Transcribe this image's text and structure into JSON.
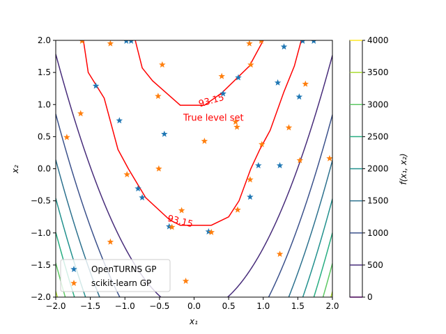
{
  "chart_data": {
    "type": "contour",
    "xlabel": "x₁",
    "ylabel": "x₂",
    "colorbar_label": "f(x₁, x₂)",
    "xlim": [
      -2,
      2
    ],
    "ylim": [
      -2,
      2
    ],
    "x_ticks": [
      -2.0,
      -1.5,
      -1.0,
      -0.5,
      0.0,
      0.5,
      1.0,
      1.5,
      2.0
    ],
    "x_tick_labels": [
      "−2.0",
      "−1.5",
      "−1.0",
      "−0.5",
      "0.0",
      "0.5",
      "1.0",
      "1.5",
      "2.0"
    ],
    "y_ticks": [
      -2.0,
      -1.5,
      -1.0,
      -0.5,
      0.0,
      0.5,
      1.0,
      1.5,
      2.0
    ],
    "y_tick_labels": [
      "−2.0",
      "−1.5",
      "−1.0",
      "−0.5",
      "0.0",
      "0.5",
      "1.0",
      "1.5",
      "2.0"
    ],
    "colorbar": {
      "range": [
        0,
        4000
      ],
      "ticks": [
        0,
        500,
        1000,
        1500,
        2000,
        2500,
        3000,
        3500,
        4000
      ],
      "tick_labels": [
        "0",
        "500",
        "1000",
        "1500",
        "2000",
        "2500",
        "3000",
        "3500",
        "4000"
      ],
      "colors": [
        "#440154",
        "#472c7a",
        "#3b518b",
        "#2c718e",
        "#21908d",
        "#27ad81",
        "#5cc863",
        "#aadc32",
        "#fde725"
      ]
    },
    "contour_levels": [
      500,
      1000,
      1500,
      2000,
      2500,
      3000,
      3500,
      4000
    ],
    "level_set": {
      "value_label": "93.15",
      "color": "#ff0000",
      "name": "True level set",
      "left_branch": [
        [
          -1.6,
          2.0
        ],
        [
          -1.53,
          1.5
        ],
        [
          -1.3,
          1.1
        ],
        [
          -1.1,
          0.3
        ],
        [
          -0.95,
          0.0
        ],
        [
          -0.7,
          -0.45
        ],
        [
          -0.35,
          -0.8
        ],
        [
          -0.2,
          -0.88
        ],
        [
          0.25,
          -0.88
        ],
        [
          0.5,
          -0.75
        ],
        [
          0.65,
          -0.5
        ],
        [
          0.82,
          0.0
        ],
        [
          0.95,
          0.3
        ],
        [
          1.1,
          0.6
        ],
        [
          1.3,
          1.2
        ],
        [
          1.45,
          1.6
        ],
        [
          1.55,
          2.0
        ]
      ],
      "top_branch": [
        [
          -0.85,
          2.0
        ],
        [
          -0.75,
          1.57
        ],
        [
          -0.6,
          1.37
        ],
        [
          -0.2,
          0.99
        ],
        [
          0.15,
          0.99
        ],
        [
          0.4,
          1.18
        ],
        [
          0.8,
          1.6
        ],
        [
          1.0,
          2.0
        ]
      ]
    },
    "series": [
      {
        "name": "OpenTURNS GP",
        "color": "#1f77b4",
        "marker": "star",
        "points": [
          [
            -1.42,
            1.29
          ],
          [
            -1.08,
            0.75
          ],
          [
            -0.98,
            1.99
          ],
          [
            -0.91,
            1.99
          ],
          [
            -0.81,
            -0.31
          ],
          [
            -0.75,
            -0.45
          ],
          [
            -0.43,
            0.54
          ],
          [
            -0.36,
            -0.9
          ],
          [
            0.21,
            -0.98
          ],
          [
            0.42,
            1.17
          ],
          [
            0.64,
            1.42
          ],
          [
            0.81,
            -0.44
          ],
          [
            0.93,
            0.05
          ],
          [
            1.21,
            1.34
          ],
          [
            1.24,
            0.05
          ],
          [
            1.3,
            1.9
          ],
          [
            1.52,
            1.12
          ],
          [
            1.57,
            1.99
          ],
          [
            1.73,
            1.99
          ]
        ]
      },
      {
        "name": "scikit-learn GP",
        "color": "#ff7f0e",
        "marker": "star",
        "points": [
          [
            -1.62,
            1.99
          ],
          [
            -1.64,
            0.86
          ],
          [
            -1.84,
            0.49
          ],
          [
            -1.21,
            1.95
          ],
          [
            -1.21,
            -1.14
          ],
          [
            -0.97,
            -0.09
          ],
          [
            -0.46,
            1.62
          ],
          [
            -0.52,
            1.13
          ],
          [
            -0.51,
            0.0
          ],
          [
            -0.32,
            -0.91
          ],
          [
            -0.18,
            -0.65
          ],
          [
            -0.12,
            -1.75
          ],
          [
            0.15,
            0.43
          ],
          [
            0.25,
            -0.99
          ],
          [
            0.4,
            1.44
          ],
          [
            0.6,
            0.73
          ],
          [
            0.62,
            0.65
          ],
          [
            0.63,
            -0.64
          ],
          [
            0.8,
            1.95
          ],
          [
            0.81,
            -0.17
          ],
          [
            0.82,
            1.62
          ],
          [
            0.97,
            1.99
          ],
          [
            0.98,
            0.38
          ],
          [
            1.24,
            -1.33
          ],
          [
            1.37,
            0.64
          ],
          [
            1.53,
            0.13
          ],
          [
            1.61,
            1.32
          ],
          [
            1.96,
            0.16
          ]
        ]
      }
    ]
  }
}
